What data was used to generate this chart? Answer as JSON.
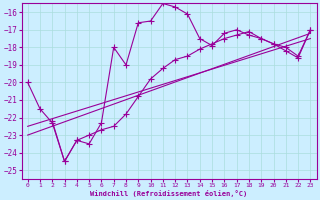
{
  "xlabel": "Windchill (Refroidissement éolien,°C)",
  "background_color": "#cceeff",
  "line_color": "#990099",
  "grid_color": "#aadddd",
  "xlim": [
    -0.5,
    23.5
  ],
  "ylim": [
    -25.5,
    -15.5
  ],
  "yticks": [
    -25,
    -24,
    -23,
    -22,
    -21,
    -20,
    -19,
    -18,
    -17,
    -16
  ],
  "xticks": [
    0,
    1,
    2,
    3,
    4,
    5,
    6,
    7,
    8,
    9,
    10,
    11,
    12,
    13,
    14,
    15,
    16,
    17,
    18,
    19,
    20,
    21,
    22,
    23
  ],
  "series1_x": [
    0,
    1,
    2,
    3,
    4,
    5,
    6,
    7,
    8,
    9,
    10,
    11,
    12,
    13,
    14,
    15,
    16,
    17,
    18,
    19,
    20,
    21,
    22,
    23
  ],
  "series1_y": [
    -20.0,
    -21.5,
    -22.3,
    -24.5,
    -23.3,
    -23.5,
    -22.3,
    -18.0,
    -19.0,
    -16.6,
    -16.5,
    -15.5,
    -15.7,
    -16.1,
    -17.5,
    -17.9,
    -17.2,
    -17.0,
    -17.3,
    -17.5,
    -17.8,
    -18.2,
    -18.6,
    -17.0
  ],
  "series2_x": [
    2,
    3,
    4,
    5,
    6,
    7,
    8,
    9,
    10,
    11,
    12,
    13,
    14,
    15,
    16,
    17,
    18,
    19,
    20,
    21,
    22,
    23
  ],
  "series2_y": [
    -22.2,
    -24.5,
    -23.3,
    -23.0,
    -22.7,
    -22.5,
    -21.8,
    -20.8,
    -19.8,
    -19.2,
    -18.7,
    -18.5,
    -18.1,
    -17.8,
    -17.5,
    -17.3,
    -17.1,
    -17.5,
    -17.8,
    -18.0,
    -18.5,
    -17.0
  ],
  "line1_x": [
    0,
    23
  ],
  "line1_y": [
    -23.0,
    -17.2
  ],
  "line2_x": [
    0,
    23
  ],
  "line2_y": [
    -22.5,
    -17.5
  ]
}
